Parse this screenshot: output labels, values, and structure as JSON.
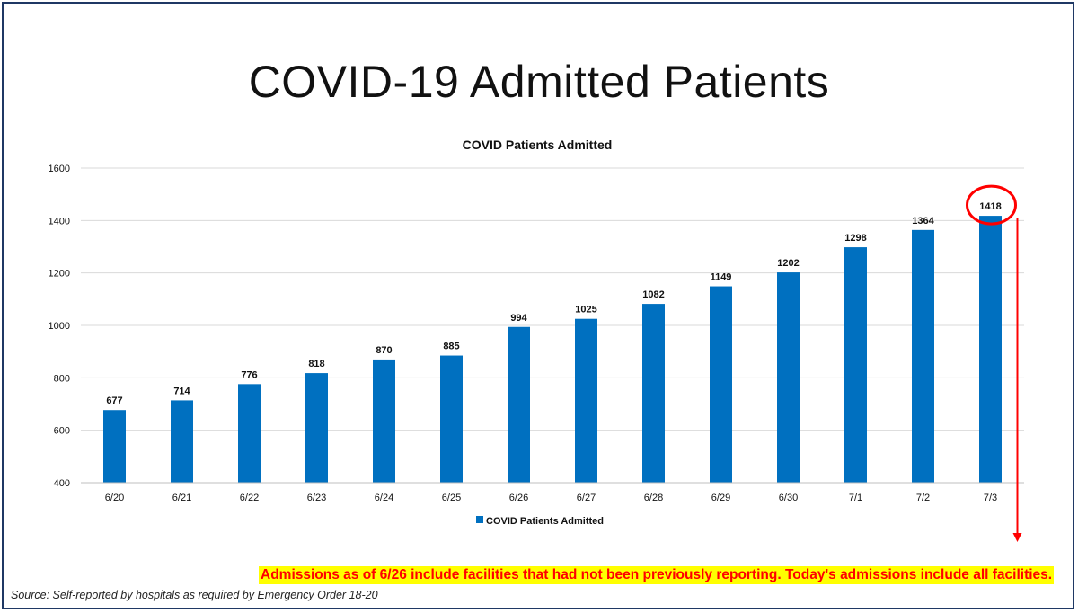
{
  "slide": {
    "title": "COVID-19 Admitted Patients",
    "note": "Admissions as of 6/26 include facilities that had not been previously reporting. Today's admissions include all facilities.",
    "source": "Source: Self-reported by hospitals as required by Emergency Order 18-20"
  },
  "colors": {
    "bar": "#0070c0",
    "highlight": "#ff0000",
    "note_background": "#ffff00",
    "note_text": "#ff0000",
    "frame": "#1f3864"
  },
  "chart_data": {
    "type": "bar",
    "title": "COVID Patients Admitted",
    "xlabel": "",
    "ylabel": "",
    "categories": [
      "6/20",
      "6/21",
      "6/22",
      "6/23",
      "6/24",
      "6/25",
      "6/26",
      "6/27",
      "6/28",
      "6/29",
      "6/30",
      "7/1",
      "7/2",
      "7/3"
    ],
    "series": [
      {
        "name": "COVID Patients Admitted",
        "values": [
          677,
          714,
          776,
          818,
          870,
          885,
          994,
          1025,
          1082,
          1149,
          1202,
          1298,
          1364,
          1418
        ]
      }
    ],
    "ylim": [
      400,
      1600
    ],
    "yticks": [
      400,
      600,
      800,
      1000,
      1200,
      1400,
      1600
    ],
    "grid": true,
    "legend": "bottom",
    "data_labels": true,
    "highlighted_category": "7/3"
  }
}
